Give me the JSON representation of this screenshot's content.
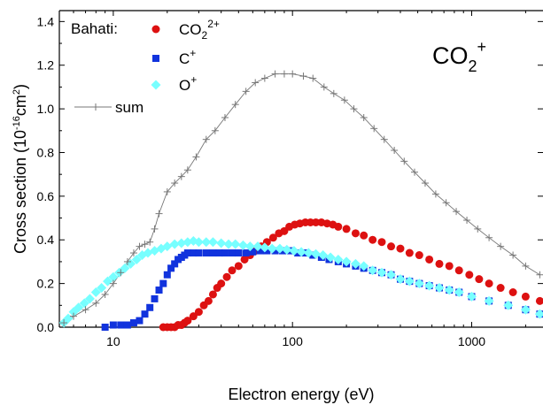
{
  "colors": {
    "co2_2plus": "#dd1111",
    "c_plus": "#1133dd",
    "o_plus": "#77ffff",
    "sum": "#777777",
    "axis": "#000000"
  },
  "chart_data": {
    "type": "scatter",
    "title": "",
    "annotation": {
      "base": "CO",
      "sub": "2",
      "sup": "+"
    },
    "xlabel": "Electron energy (eV)",
    "ylabel_base": "Cross section (10",
    "ylabel_sup": "-16",
    "ylabel_mid": "cm",
    "ylabel_sup2": "2",
    "ylabel_end": ")",
    "x_scale": "log",
    "xlim": [
      5,
      2500
    ],
    "ylim": [
      0,
      1.45
    ],
    "x_ticks": [
      10,
      100,
      1000
    ],
    "x_tick_labels": [
      "10",
      "100",
      "1000"
    ],
    "y_ticks": [
      0.0,
      0.2,
      0.4,
      0.6,
      0.8,
      1.0,
      1.2,
      1.4
    ],
    "y_tick_labels": [
      "0.0",
      "0.2",
      "0.4",
      "0.6",
      "0.8",
      "1.0",
      "1.2",
      "1.4"
    ],
    "legend": {
      "title": "Bahati:",
      "placement": "top-left",
      "entries": [
        {
          "key": "co2",
          "base": "CO",
          "sub": "2",
          "sup": "2+"
        },
        {
          "key": "c",
          "base": "C",
          "sub": "",
          "sup": "+"
        },
        {
          "key": "o",
          "base": "O",
          "sub": "",
          "sup": "+"
        },
        {
          "key": "sum",
          "base": "sum",
          "sub": "",
          "sup": ""
        }
      ]
    },
    "series": [
      {
        "name": "CO2 2+",
        "marker": "circle",
        "x": [
          19,
          20,
          21,
          22,
          23,
          24,
          25,
          26,
          28,
          30,
          32,
          34,
          36,
          38,
          40,
          43,
          46,
          50,
          54,
          58,
          62,
          67,
          72,
          78,
          84,
          90,
          96,
          103,
          110,
          118,
          126,
          135,
          145,
          156,
          168,
          180,
          200,
          225,
          250,
          280,
          315,
          355,
          400,
          450,
          510,
          580,
          660,
          750,
          850,
          970,
          1100,
          1250,
          1450,
          1700,
          2000,
          2400
        ],
        "y": [
          0.0,
          0.0,
          0.0,
          0.0,
          0.01,
          0.01,
          0.02,
          0.03,
          0.05,
          0.07,
          0.1,
          0.12,
          0.15,
          0.18,
          0.2,
          0.23,
          0.26,
          0.28,
          0.31,
          0.33,
          0.35,
          0.37,
          0.39,
          0.41,
          0.43,
          0.44,
          0.46,
          0.47,
          0.475,
          0.48,
          0.48,
          0.48,
          0.48,
          0.475,
          0.47,
          0.46,
          0.45,
          0.43,
          0.42,
          0.4,
          0.39,
          0.37,
          0.36,
          0.34,
          0.33,
          0.31,
          0.29,
          0.28,
          0.26,
          0.24,
          0.22,
          0.2,
          0.18,
          0.16,
          0.14,
          0.12
        ]
      },
      {
        "name": "C+",
        "marker": "square",
        "x": [
          9,
          10,
          11,
          12,
          13,
          14,
          15,
          16,
          17,
          18,
          19,
          20,
          21,
          22,
          23,
          24,
          25,
          26,
          28,
          30,
          33,
          36,
          39,
          42,
          46,
          50,
          55,
          60,
          66,
          72,
          80,
          88,
          97,
          107,
          118,
          130,
          145,
          160,
          180,
          200,
          225,
          250,
          280,
          315,
          355,
          400,
          450,
          510,
          580,
          660,
          750,
          850,
          1000,
          1250,
          1600,
          2000,
          2400
        ],
        "y": [
          0.0,
          0.01,
          0.01,
          0.01,
          0.02,
          0.03,
          0.06,
          0.09,
          0.13,
          0.17,
          0.2,
          0.24,
          0.27,
          0.29,
          0.31,
          0.32,
          0.33,
          0.34,
          0.34,
          0.34,
          0.34,
          0.34,
          0.34,
          0.34,
          0.34,
          0.34,
          0.34,
          0.345,
          0.35,
          0.35,
          0.35,
          0.35,
          0.35,
          0.34,
          0.34,
          0.33,
          0.32,
          0.31,
          0.3,
          0.29,
          0.28,
          0.27,
          0.26,
          0.25,
          0.24,
          0.22,
          0.21,
          0.2,
          0.19,
          0.18,
          0.17,
          0.16,
          0.14,
          0.12,
          0.1,
          0.08,
          0.06
        ]
      },
      {
        "name": "O+",
        "marker": "diamond",
        "x": [
          5.3,
          5.6,
          6,
          6.4,
          6.9,
          7.4,
          8,
          8.6,
          9.3,
          10,
          10.8,
          11.6,
          12.5,
          13.5,
          14.5,
          15.6,
          17,
          18.5,
          20,
          22,
          24,
          26,
          28,
          30,
          33,
          36,
          40,
          44,
          48,
          53,
          58,
          64,
          70,
          77,
          85,
          93,
          102,
          112,
          123,
          135,
          148,
          163,
          180,
          200,
          225,
          250,
          280,
          315,
          355,
          400,
          450,
          510,
          580,
          660,
          750,
          850,
          1000,
          1250,
          1600,
          2000,
          2400
        ],
        "y": [
          0.02,
          0.04,
          0.07,
          0.09,
          0.11,
          0.13,
          0.16,
          0.18,
          0.21,
          0.23,
          0.25,
          0.27,
          0.29,
          0.31,
          0.33,
          0.34,
          0.35,
          0.36,
          0.37,
          0.38,
          0.385,
          0.39,
          0.395,
          0.39,
          0.39,
          0.39,
          0.385,
          0.38,
          0.38,
          0.375,
          0.37,
          0.37,
          0.365,
          0.36,
          0.36,
          0.355,
          0.35,
          0.345,
          0.34,
          0.335,
          0.33,
          0.32,
          0.31,
          0.3,
          0.29,
          0.28,
          0.26,
          0.25,
          0.24,
          0.22,
          0.21,
          0.2,
          0.19,
          0.18,
          0.17,
          0.16,
          0.14,
          0.12,
          0.1,
          0.08,
          0.06
        ]
      },
      {
        "name": "sum",
        "marker": "plus",
        "x": [
          5.3,
          6,
          7,
          8,
          9,
          10,
          11,
          12,
          13,
          14,
          15,
          16,
          17,
          18,
          20,
          22,
          24,
          26,
          29,
          33,
          37,
          42,
          48,
          55,
          62,
          70,
          80,
          90,
          100,
          115,
          130,
          150,
          170,
          195,
          220,
          250,
          285,
          325,
          370,
          420,
          480,
          550,
          630,
          720,
          820,
          940,
          1080,
          1250,
          1450,
          1700,
          2000,
          2400
        ],
        "y": [
          0.02,
          0.05,
          0.08,
          0.11,
          0.15,
          0.2,
          0.25,
          0.3,
          0.34,
          0.37,
          0.38,
          0.39,
          0.45,
          0.52,
          0.62,
          0.66,
          0.69,
          0.72,
          0.78,
          0.86,
          0.9,
          0.96,
          1.02,
          1.08,
          1.12,
          1.14,
          1.16,
          1.16,
          1.16,
          1.15,
          1.14,
          1.1,
          1.07,
          1.04,
          1.0,
          0.96,
          0.91,
          0.86,
          0.81,
          0.76,
          0.71,
          0.66,
          0.61,
          0.57,
          0.53,
          0.49,
          0.45,
          0.41,
          0.37,
          0.33,
          0.28,
          0.24
        ]
      }
    ]
  }
}
